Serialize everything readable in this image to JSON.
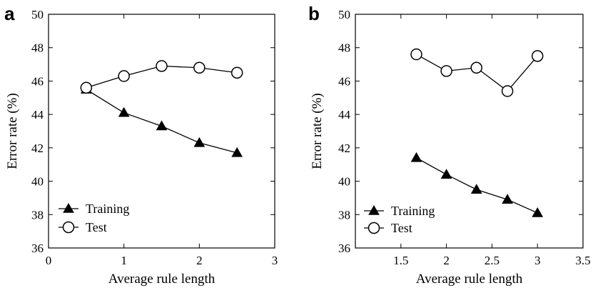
{
  "chart_data": [
    {
      "panel": "a",
      "type": "line",
      "xlabel": "Average rule length",
      "ylabel": "Error rate (%)",
      "xlim": [
        0,
        3
      ],
      "ylim": [
        36,
        50
      ],
      "xticks": [
        0,
        1,
        2,
        3
      ],
      "xtick_labels": [
        "0",
        "1",
        "2",
        "3"
      ],
      "yticks": [
        36,
        38,
        40,
        42,
        44,
        46,
        48,
        50
      ],
      "ytick_labels": [
        "36",
        "38",
        "40",
        "42",
        "44",
        "46",
        "48",
        "50"
      ],
      "grid": false,
      "legend_position": "bottom-left",
      "series": [
        {
          "name": "Training",
          "marker": "triangle-filled",
          "x": [
            0.5,
            1.0,
            1.5,
            2.0,
            2.5
          ],
          "y": [
            45.5,
            44.1,
            43.3,
            42.3,
            41.7
          ]
        },
        {
          "name": "Test",
          "marker": "circle-open",
          "x": [
            0.5,
            1.0,
            1.5,
            2.0,
            2.5
          ],
          "y": [
            45.6,
            46.3,
            46.9,
            46.8,
            46.5
          ]
        }
      ]
    },
    {
      "panel": "b",
      "type": "line",
      "xlabel": "Average rule length",
      "ylabel": "Error rate (%)",
      "xlim": [
        1,
        3.5
      ],
      "ylim": [
        36,
        50
      ],
      "xticks": [
        1.5,
        2.0,
        2.5,
        3.0,
        3.5
      ],
      "xtick_labels": [
        "1.5",
        "2",
        "2.5",
        "3",
        "3.5"
      ],
      "yticks": [
        36,
        38,
        40,
        42,
        44,
        46,
        48,
        50
      ],
      "ytick_labels": [
        "36",
        "38",
        "40",
        "42",
        "44",
        "46",
        "48",
        "50"
      ],
      "grid": false,
      "legend_position": "bottom-left",
      "series": [
        {
          "name": "Training",
          "marker": "triangle-filled",
          "x": [
            1.67,
            2.0,
            2.33,
            2.67,
            3.0
          ],
          "y": [
            41.4,
            40.4,
            39.5,
            38.9,
            38.1
          ]
        },
        {
          "name": "Test",
          "marker": "circle-open",
          "x": [
            1.67,
            2.0,
            2.33,
            2.67,
            3.0
          ],
          "y": [
            47.6,
            46.6,
            46.8,
            45.4,
            47.5
          ]
        }
      ]
    }
  ]
}
